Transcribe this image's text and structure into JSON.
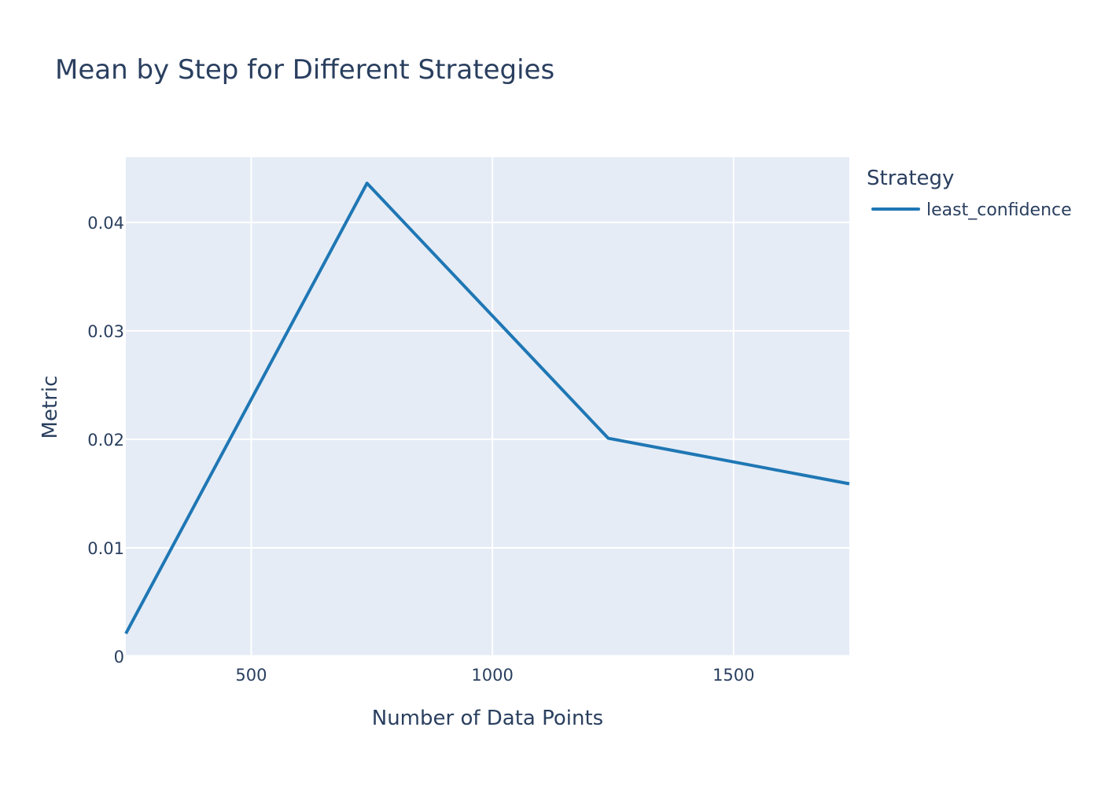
{
  "chart_data": {
    "type": "line",
    "title": "Mean by Step for Different Strategies",
    "xlabel": "Number of Data Points",
    "ylabel": "Metric",
    "xlim": [
      240,
      1740
    ],
    "ylim": [
      0,
      0.046
    ],
    "x_ticks": [
      500,
      1000,
      1500
    ],
    "x_tick_labels": [
      "500",
      "1000",
      "1500"
    ],
    "y_ticks": [
      0,
      0.01,
      0.02,
      0.03,
      0.04
    ],
    "y_tick_labels": [
      "0",
      "0.01",
      "0.02",
      "0.03",
      "0.04"
    ],
    "grid": true,
    "legend": {
      "title": "Strategy",
      "placement": "right"
    },
    "series": [
      {
        "name": "least_confidence",
        "color": "#1f77b4",
        "x": [
          240,
          740,
          1240,
          1740
        ],
        "y": [
          0.0021,
          0.0436,
          0.0201,
          0.0159
        ]
      }
    ],
    "plot_background": "#e5ecf6",
    "grid_color": "#ffffff"
  }
}
